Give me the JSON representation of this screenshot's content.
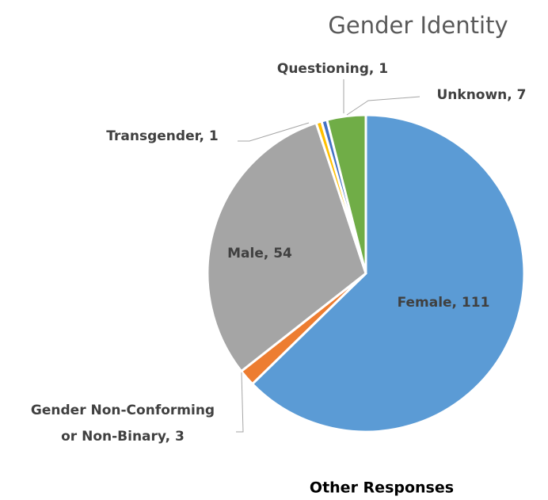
{
  "chart_data": {
    "type": "pie",
    "title": "Gender Identity",
    "labels": [
      "Female, 111",
      [
        "Gender Non-Conforming",
        "or Non-Binary, 3"
      ],
      "Male, 54",
      "Transgender, 1",
      "Questioning, 1",
      "Unknown, 7"
    ],
    "values": [
      111,
      3,
      54,
      1,
      1,
      7
    ],
    "colors": [
      "#5b9bd5",
      "#ed7d31",
      "#a5a5a5",
      "#ffc000",
      "#4472c4",
      "#70ad47"
    ],
    "footer": "Other Responses"
  }
}
